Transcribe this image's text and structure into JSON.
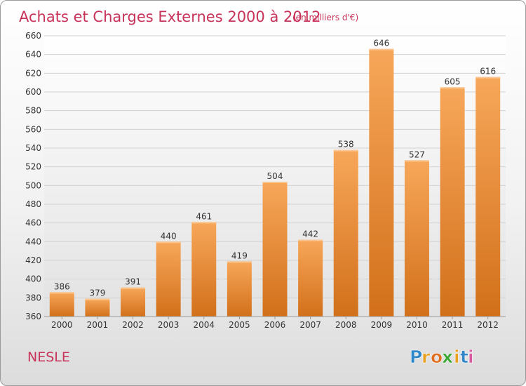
{
  "chart_data": {
    "type": "bar",
    "title": "Achats et Charges Externes 2000 à 2012",
    "subtitle": "(en milliers d'€)",
    "xlabel": "",
    "ylabel": "",
    "categories": [
      "2000",
      "2001",
      "2002",
      "2003",
      "2004",
      "2005",
      "2006",
      "2007",
      "2008",
      "2009",
      "2010",
      "2011",
      "2012"
    ],
    "values": [
      386,
      379,
      391,
      440,
      461,
      419,
      504,
      442,
      538,
      646,
      527,
      605,
      616
    ],
    "value_labels": [
      "386",
      "379",
      "391",
      "440",
      "461",
      "419",
      "504",
      "442",
      "538",
      "646",
      "527",
      "605",
      "616"
    ],
    "ylim": [
      360,
      660
    ],
    "y_ticks": [
      360,
      380,
      400,
      420,
      440,
      460,
      480,
      500,
      520,
      540,
      560,
      580,
      600,
      620,
      640,
      660
    ],
    "y_tick_labels": [
      "360",
      "380",
      "400",
      "420",
      "440",
      "460",
      "480",
      "500",
      "520",
      "540",
      "560",
      "580",
      "600",
      "620",
      "640",
      "660"
    ],
    "grid": true,
    "legend": "none",
    "bar_color_top": "#f7a75a",
    "bar_color_bottom": "#d2701a",
    "title_color": "#c8335a"
  },
  "footer": {
    "place_name": "NESLE",
    "brand": "Proxiti",
    "brand_letters": [
      "P",
      "r",
      "o",
      "x",
      "i",
      "t",
      "i"
    ],
    "brand_colors": [
      "#2f86c8",
      "#e8a020",
      "#e07020",
      "#3aa832",
      "#e8a020",
      "#2f86c8",
      "#d85aa0"
    ]
  }
}
